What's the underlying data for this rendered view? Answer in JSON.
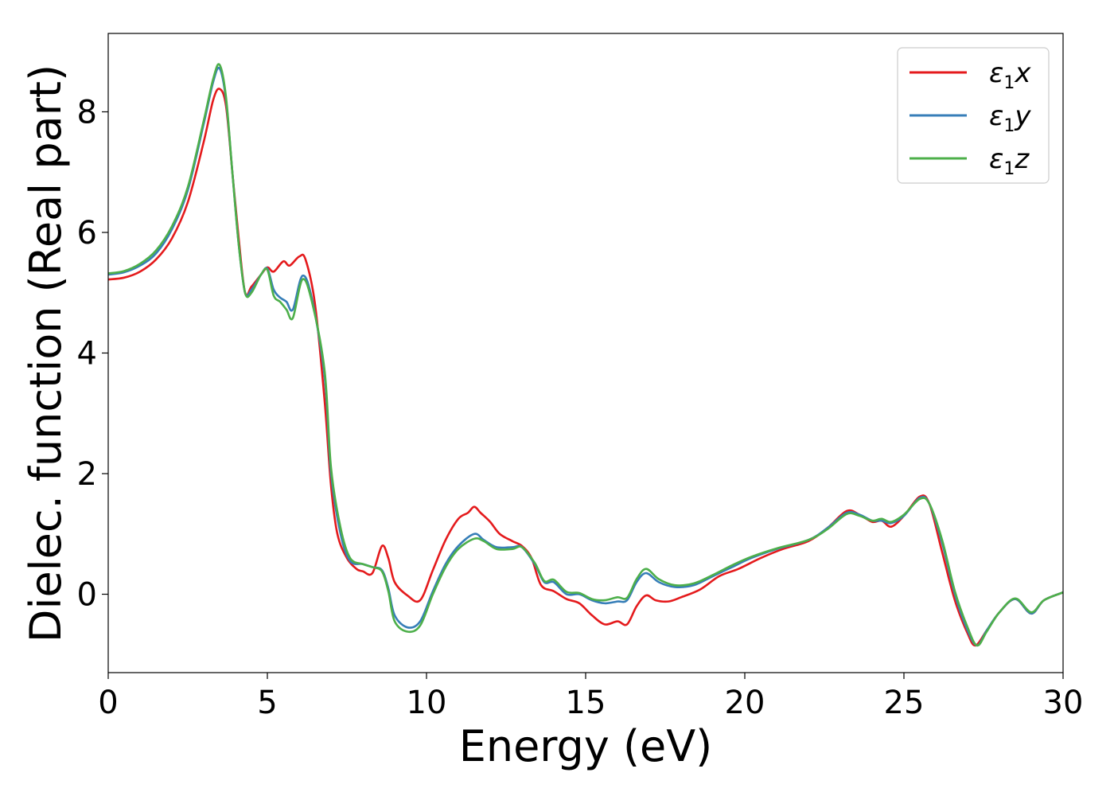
{
  "chart_data": {
    "type": "line",
    "xlabel": "Energy (eV)",
    "ylabel": "Dielec. function (Real part)",
    "xlim": [
      0,
      30
    ],
    "ylim": [
      -1.3,
      9.3
    ],
    "xticks": [
      0,
      5,
      10,
      15,
      20,
      25,
      30
    ],
    "yticks": [
      0,
      2,
      4,
      6,
      8
    ],
    "grid": false,
    "legend_position": "top-right",
    "series": [
      {
        "name": "ε1x",
        "legend_base": "ε",
        "legend_sub": "1",
        "legend_tail": "x",
        "color": "#e41a1c",
        "points": [
          [
            0,
            5.22
          ],
          [
            0.5,
            5.25
          ],
          [
            1,
            5.35
          ],
          [
            1.5,
            5.55
          ],
          [
            2,
            5.9
          ],
          [
            2.5,
            6.5
          ],
          [
            3,
            7.5
          ],
          [
            3.3,
            8.2
          ],
          [
            3.5,
            8.38
          ],
          [
            3.7,
            8.1
          ],
          [
            3.9,
            7.0
          ],
          [
            4.1,
            5.9
          ],
          [
            4.3,
            5.0
          ],
          [
            4.5,
            5.1
          ],
          [
            4.8,
            5.3
          ],
          [
            5.0,
            5.42
          ],
          [
            5.2,
            5.35
          ],
          [
            5.5,
            5.52
          ],
          [
            5.7,
            5.45
          ],
          [
            6.0,
            5.6
          ],
          [
            6.2,
            5.55
          ],
          [
            6.5,
            4.8
          ],
          [
            6.8,
            3.2
          ],
          [
            7.0,
            1.8
          ],
          [
            7.2,
            1.0
          ],
          [
            7.5,
            0.6
          ],
          [
            7.8,
            0.42
          ],
          [
            8.0,
            0.38
          ],
          [
            8.3,
            0.35
          ],
          [
            8.6,
            0.8
          ],
          [
            8.8,
            0.6
          ],
          [
            9.0,
            0.2
          ],
          [
            9.4,
            -0.02
          ],
          [
            9.8,
            -0.1
          ],
          [
            10.2,
            0.4
          ],
          [
            10.6,
            0.9
          ],
          [
            11.0,
            1.25
          ],
          [
            11.3,
            1.35
          ],
          [
            11.5,
            1.45
          ],
          [
            11.7,
            1.35
          ],
          [
            12.0,
            1.2
          ],
          [
            12.3,
            1.0
          ],
          [
            12.7,
            0.88
          ],
          [
            13.0,
            0.8
          ],
          [
            13.3,
            0.6
          ],
          [
            13.6,
            0.15
          ],
          [
            14.0,
            0.05
          ],
          [
            14.4,
            -0.08
          ],
          [
            14.8,
            -0.15
          ],
          [
            15.2,
            -0.35
          ],
          [
            15.6,
            -0.5
          ],
          [
            16.0,
            -0.45
          ],
          [
            16.3,
            -0.5
          ],
          [
            16.6,
            -0.2
          ],
          [
            16.9,
            -0.02
          ],
          [
            17.2,
            -0.1
          ],
          [
            17.6,
            -0.12
          ],
          [
            18.0,
            -0.05
          ],
          [
            18.6,
            0.08
          ],
          [
            19.2,
            0.3
          ],
          [
            19.8,
            0.42
          ],
          [
            20.5,
            0.6
          ],
          [
            21.2,
            0.75
          ],
          [
            22.0,
            0.88
          ],
          [
            22.6,
            1.1
          ],
          [
            23.2,
            1.38
          ],
          [
            23.6,
            1.32
          ],
          [
            24.0,
            1.2
          ],
          [
            24.3,
            1.22
          ],
          [
            24.6,
            1.12
          ],
          [
            25.0,
            1.3
          ],
          [
            25.5,
            1.62
          ],
          [
            25.8,
            1.5
          ],
          [
            26.2,
            0.7
          ],
          [
            26.6,
            -0.1
          ],
          [
            27.0,
            -0.65
          ],
          [
            27.25,
            -0.85
          ],
          [
            27.6,
            -0.6
          ],
          [
            28.0,
            -0.3
          ],
          [
            28.5,
            -0.08
          ],
          [
            29.0,
            -0.32
          ],
          [
            29.4,
            -0.1
          ],
          [
            30,
            0.03
          ]
        ]
      },
      {
        "name": "ε1y",
        "legend_base": "ε",
        "legend_sub": "1",
        "legend_tail": "y",
        "color": "#377eb8",
        "points": [
          [
            0,
            5.3
          ],
          [
            0.5,
            5.34
          ],
          [
            1,
            5.45
          ],
          [
            1.5,
            5.65
          ],
          [
            2,
            6.05
          ],
          [
            2.5,
            6.7
          ],
          [
            3,
            7.8
          ],
          [
            3.3,
            8.5
          ],
          [
            3.5,
            8.72
          ],
          [
            3.7,
            8.2
          ],
          [
            3.9,
            7.0
          ],
          [
            4.1,
            5.8
          ],
          [
            4.3,
            5.0
          ],
          [
            4.5,
            5.05
          ],
          [
            4.8,
            5.3
          ],
          [
            5.0,
            5.4
          ],
          [
            5.2,
            5.05
          ],
          [
            5.4,
            4.92
          ],
          [
            5.6,
            4.85
          ],
          [
            5.8,
            4.72
          ],
          [
            6.1,
            5.28
          ],
          [
            6.4,
            4.9
          ],
          [
            6.8,
            3.6
          ],
          [
            7.0,
            2.0
          ],
          [
            7.3,
            1.0
          ],
          [
            7.6,
            0.55
          ],
          [
            8.0,
            0.5
          ],
          [
            8.3,
            0.45
          ],
          [
            8.6,
            0.4
          ],
          [
            8.8,
            0.1
          ],
          [
            9.0,
            -0.35
          ],
          [
            9.4,
            -0.55
          ],
          [
            9.8,
            -0.45
          ],
          [
            10.2,
            0.05
          ],
          [
            10.6,
            0.5
          ],
          [
            11.0,
            0.8
          ],
          [
            11.5,
            1.0
          ],
          [
            11.8,
            0.9
          ],
          [
            12.2,
            0.78
          ],
          [
            12.7,
            0.78
          ],
          [
            13.0,
            0.78
          ],
          [
            13.4,
            0.5
          ],
          [
            13.7,
            0.2
          ],
          [
            14.0,
            0.2
          ],
          [
            14.4,
            0.0
          ],
          [
            14.8,
            0.0
          ],
          [
            15.2,
            -0.1
          ],
          [
            15.6,
            -0.15
          ],
          [
            16.0,
            -0.12
          ],
          [
            16.3,
            -0.1
          ],
          [
            16.6,
            0.2
          ],
          [
            16.9,
            0.35
          ],
          [
            17.3,
            0.2
          ],
          [
            17.8,
            0.12
          ],
          [
            18.4,
            0.15
          ],
          [
            19.0,
            0.3
          ],
          [
            19.6,
            0.45
          ],
          [
            20.2,
            0.6
          ],
          [
            21.0,
            0.75
          ],
          [
            22.0,
            0.9
          ],
          [
            22.6,
            1.1
          ],
          [
            23.2,
            1.35
          ],
          [
            23.6,
            1.32
          ],
          [
            24.0,
            1.22
          ],
          [
            24.3,
            1.22
          ],
          [
            24.6,
            1.18
          ],
          [
            25.0,
            1.3
          ],
          [
            25.5,
            1.6
          ],
          [
            25.8,
            1.5
          ],
          [
            26.2,
            0.85
          ],
          [
            26.6,
            0.0
          ],
          [
            27.0,
            -0.6
          ],
          [
            27.3,
            -0.85
          ],
          [
            27.6,
            -0.6
          ],
          [
            28.0,
            -0.3
          ],
          [
            28.5,
            -0.08
          ],
          [
            29.0,
            -0.32
          ],
          [
            29.4,
            -0.1
          ],
          [
            30,
            0.03
          ]
        ]
      },
      {
        "name": "ε1z",
        "legend_base": "ε",
        "legend_sub": "1",
        "legend_tail": "z",
        "color": "#4daf4a",
        "points": [
          [
            0,
            5.32
          ],
          [
            0.5,
            5.36
          ],
          [
            1,
            5.48
          ],
          [
            1.5,
            5.7
          ],
          [
            2,
            6.1
          ],
          [
            2.5,
            6.75
          ],
          [
            3,
            7.85
          ],
          [
            3.3,
            8.55
          ],
          [
            3.5,
            8.78
          ],
          [
            3.7,
            8.25
          ],
          [
            3.9,
            7.0
          ],
          [
            4.1,
            5.8
          ],
          [
            4.3,
            5.0
          ],
          [
            4.5,
            5.0
          ],
          [
            4.8,
            5.3
          ],
          [
            5.0,
            5.38
          ],
          [
            5.2,
            4.95
          ],
          [
            5.4,
            4.85
          ],
          [
            5.6,
            4.72
          ],
          [
            5.8,
            4.58
          ],
          [
            6.1,
            5.22
          ],
          [
            6.4,
            4.85
          ],
          [
            6.8,
            3.7
          ],
          [
            7.0,
            2.1
          ],
          [
            7.3,
            1.1
          ],
          [
            7.6,
            0.6
          ],
          [
            8.0,
            0.5
          ],
          [
            8.3,
            0.45
          ],
          [
            8.6,
            0.38
          ],
          [
            8.8,
            0.05
          ],
          [
            9.0,
            -0.45
          ],
          [
            9.4,
            -0.62
          ],
          [
            9.8,
            -0.52
          ],
          [
            10.2,
            0.0
          ],
          [
            10.6,
            0.45
          ],
          [
            11.0,
            0.75
          ],
          [
            11.5,
            0.92
          ],
          [
            11.8,
            0.88
          ],
          [
            12.2,
            0.75
          ],
          [
            12.7,
            0.75
          ],
          [
            13.0,
            0.78
          ],
          [
            13.4,
            0.52
          ],
          [
            13.7,
            0.22
          ],
          [
            14.0,
            0.24
          ],
          [
            14.4,
            0.04
          ],
          [
            14.8,
            0.02
          ],
          [
            15.2,
            -0.08
          ],
          [
            15.6,
            -0.1
          ],
          [
            16.0,
            -0.05
          ],
          [
            16.3,
            -0.06
          ],
          [
            16.6,
            0.25
          ],
          [
            16.9,
            0.42
          ],
          [
            17.3,
            0.25
          ],
          [
            17.8,
            0.15
          ],
          [
            18.4,
            0.18
          ],
          [
            19.0,
            0.32
          ],
          [
            19.6,
            0.48
          ],
          [
            20.2,
            0.62
          ],
          [
            21.0,
            0.76
          ],
          [
            22.0,
            0.9
          ],
          [
            22.6,
            1.08
          ],
          [
            23.2,
            1.33
          ],
          [
            23.6,
            1.3
          ],
          [
            24.0,
            1.22
          ],
          [
            24.3,
            1.25
          ],
          [
            24.6,
            1.2
          ],
          [
            25.0,
            1.32
          ],
          [
            25.5,
            1.58
          ],
          [
            25.8,
            1.5
          ],
          [
            26.2,
            0.9
          ],
          [
            26.6,
            0.05
          ],
          [
            27.0,
            -0.55
          ],
          [
            27.3,
            -0.85
          ],
          [
            27.6,
            -0.62
          ],
          [
            28.0,
            -0.3
          ],
          [
            28.5,
            -0.07
          ],
          [
            29.0,
            -0.3
          ],
          [
            29.4,
            -0.1
          ],
          [
            30,
            0.03
          ]
        ]
      }
    ]
  }
}
